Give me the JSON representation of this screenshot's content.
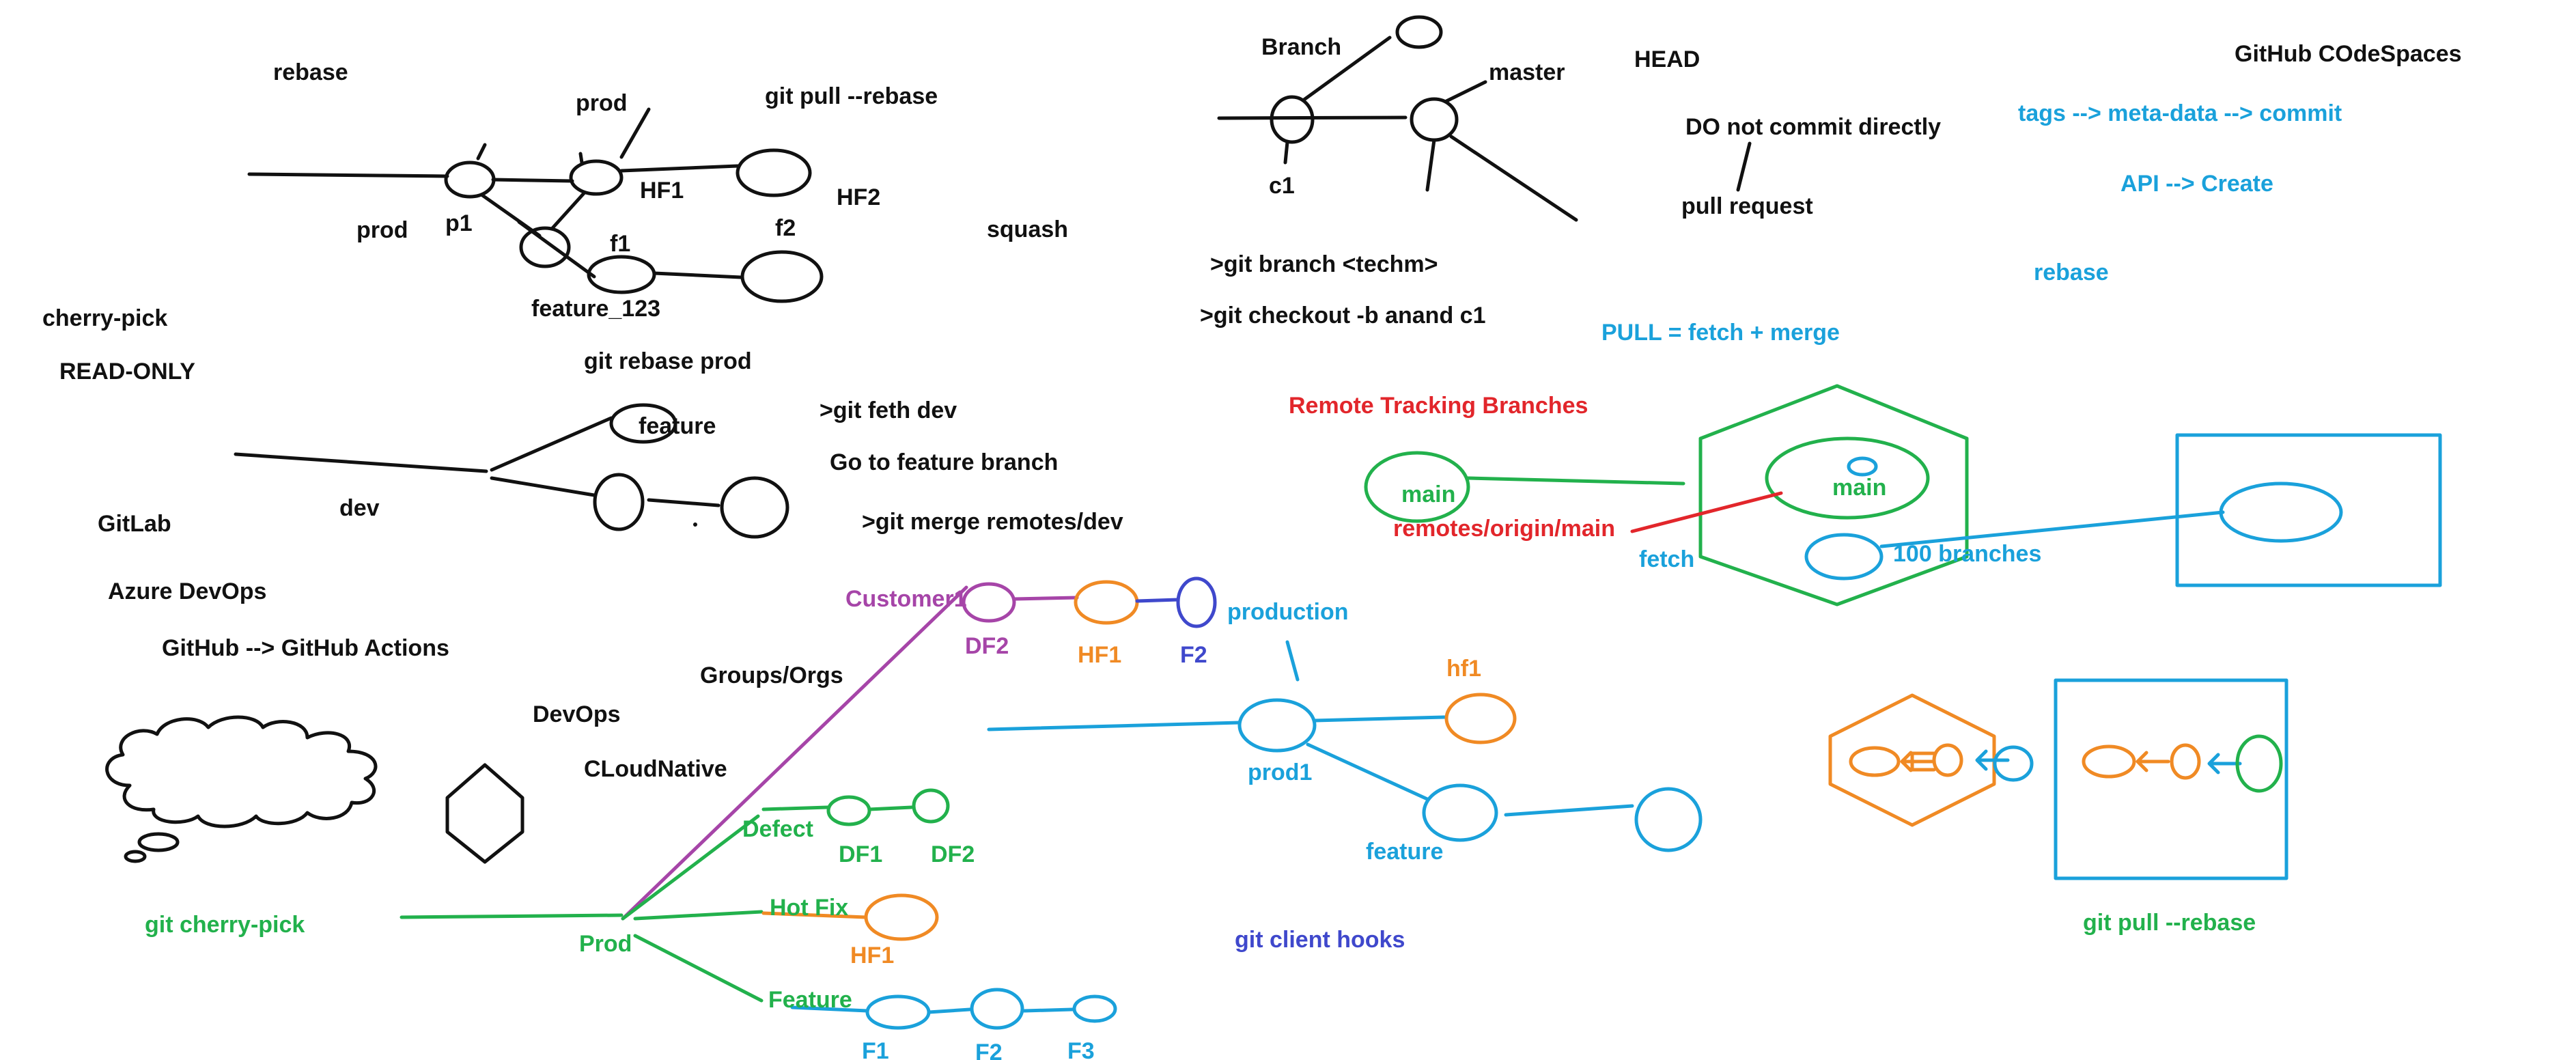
{
  "colors": {
    "black": "#111111",
    "blue": "#1aa1db",
    "green": "#22b14c",
    "orange": "#f08a24",
    "red": "#e2262b",
    "purple": "#a645a8",
    "indigo": "#3f48cc"
  },
  "notes": {
    "rebase": "rebase",
    "prod_top": "prod",
    "git_pull_rebase": "git pull --rebase",
    "hf1": "HF1",
    "hf2": "HF2",
    "prod_left": "prod",
    "p1": "p1",
    "f1": "f1",
    "f2": "f2",
    "squash": "squash",
    "feature_123": "feature_123",
    "cherry_pick": "cherry-pick",
    "read_only": "READ-ONLY",
    "git_rebase_prod": "git rebase prod",
    "git_feth_dev": ">git feth dev",
    "feature_dev": "feature",
    "go_to_feature": "Go to feature branch",
    "dev": "dev",
    "git_merge_remotes": ">git merge remotes/dev",
    "gitlab": "GitLab",
    "azure_devops": "Azure DevOps",
    "github_actions": "GitHub --> GitHub Actions",
    "groups_orgs": "Groups/Orgs",
    "devops": "DevOps",
    "cloudnative": "CLoudNative"
  },
  "top_middle": {
    "branch": "Branch",
    "master": "master",
    "head": "HEAD",
    "do_not_commit": "DO not commit directly",
    "c1": "c1",
    "pull_request": "pull request",
    "git_branch": ">git branch <techm>",
    "git_checkout": ">git checkout -b anand c1",
    "pull_equals": "PULL = fetch + merge"
  },
  "top_right": {
    "codespaces": "GitHub COdeSpaces",
    "tags": "tags  --> meta-data --> commit",
    "api_create": "API --> Create",
    "rebase": "rebase"
  },
  "remote_tracking": {
    "title": "Remote Tracking Branches",
    "main_local": "main",
    "main_remote": "main",
    "remotes_origin_main": "remotes/origin/main",
    "fetch": "fetch",
    "hundred_branches": "100 branches"
  },
  "workflow": {
    "customer1": "Customer1",
    "df2_purple": "DF2",
    "hf1_orange": "HF1",
    "f2_indigo": "F2",
    "production": "production",
    "hf1_lower": "hf1",
    "prod1": "prod1",
    "feature_blue": "feature",
    "defect": "Defect",
    "df1": "DF1",
    "df2_green": "DF2",
    "hot_fix": "Hot  Fix",
    "hf1_hotfix": "HF1",
    "prod": "Prod",
    "feature_green": "Feature",
    "f1": "F1",
    "f2": "F2",
    "f3": "F3",
    "git_cherry_pick": "git cherry-pick",
    "git_client_hooks": "git client hooks",
    "git_pull_rebase_bottom": "git pull --rebase"
  }
}
